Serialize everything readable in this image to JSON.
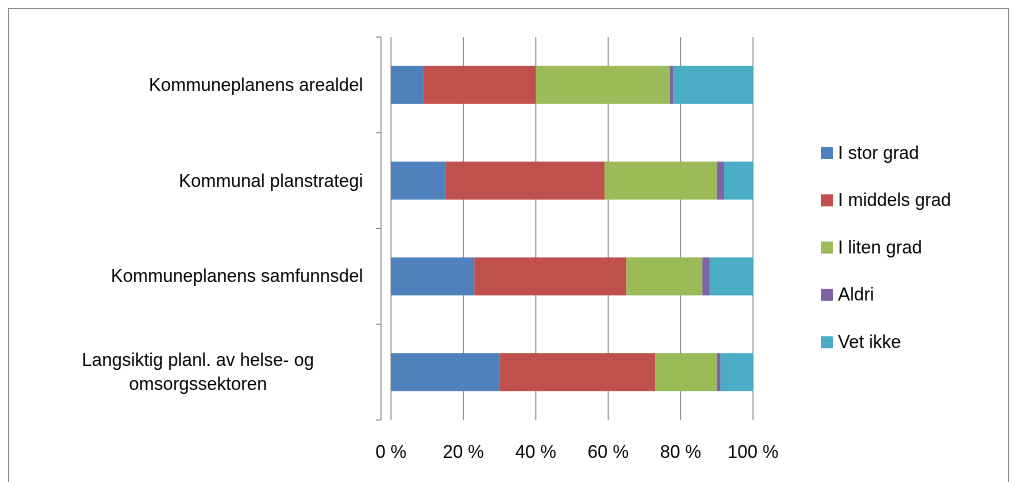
{
  "chart_data": {
    "type": "bar",
    "orientation": "horizontal",
    "stacked": true,
    "categories": [
      "Kommuneplanens arealdel",
      "Kommunal planstrategi",
      "Kommuneplanens samfunnsdel",
      "Langsiktig planl. av helse- og omsorgssektoren"
    ],
    "series": [
      {
        "name": "I stor grad",
        "color": "#4f81bd",
        "values": [
          9,
          15,
          23,
          30
        ]
      },
      {
        "name": "I middels grad",
        "color": "#c0504d",
        "values": [
          31,
          44,
          42,
          43
        ]
      },
      {
        "name": "I liten grad",
        "color": "#9bbb59",
        "values": [
          37,
          31,
          21,
          17
        ]
      },
      {
        "name": "Aldri",
        "color": "#8064a2",
        "values": [
          1,
          2,
          2,
          1
        ]
      },
      {
        "name": "Vet ikke",
        "color": "#4bacc6",
        "values": [
          22,
          8,
          12,
          9
        ]
      }
    ],
    "xlim": [
      0,
      100
    ],
    "xticks": [
      {
        "value": 0,
        "label": "0 %"
      },
      {
        "value": 20,
        "label": "20 %"
      },
      {
        "value": 40,
        "label": "40 %"
      },
      {
        "value": 60,
        "label": "60 %"
      },
      {
        "value": 80,
        "label": "80 %"
      },
      {
        "value": 100,
        "label": "100 %"
      }
    ],
    "grid": true,
    "legend": "right"
  }
}
